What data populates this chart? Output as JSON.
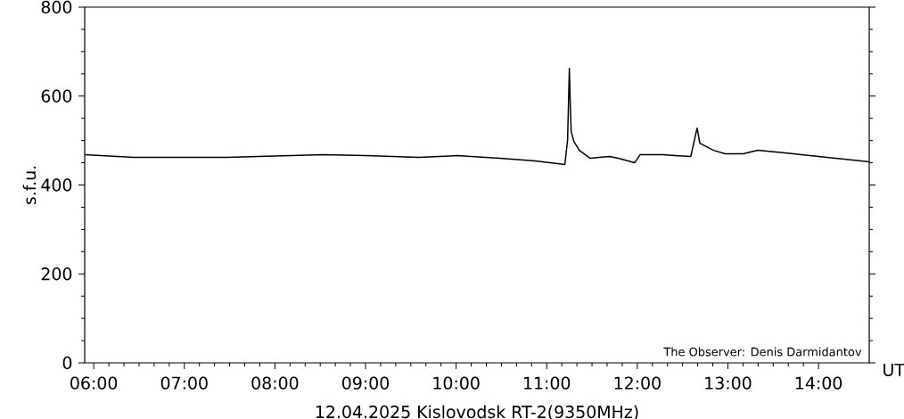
{
  "chart_data": {
    "type": "line",
    "xlabel": "12.04.2025 Kislovodsk RT-2(9350MHz)",
    "ylabel": "s.f.u.",
    "annotations": [
      "UT",
      "The Observer: Denis Darmidantov"
    ],
    "x": [
      5.9,
      6.44,
      7.43,
      8.53,
      9.0,
      9.59,
      10.01,
      10.48,
      10.87,
      11.2,
      11.23,
      11.25,
      11.26,
      11.27,
      11.3,
      11.36,
      11.48,
      11.69,
      11.79,
      11.97,
      12.03,
      12.28,
      12.59,
      12.66,
      12.69,
      12.84,
      12.97,
      13.17,
      13.33,
      13.63,
      14.0,
      14.56
    ],
    "series": [
      {
        "color": "#000000",
        "values": [
          468,
          462,
          462,
          468,
          466,
          462,
          466,
          460,
          454,
          446,
          500,
          662,
          580,
          520,
          498,
          478,
          460,
          464,
          460,
          450,
          468,
          468,
          464,
          528,
          494,
          478,
          470,
          470,
          478,
          472,
          464,
          452
        ]
      }
    ],
    "xlim": [
      5.9,
      14.56
    ],
    "ylim": [
      0,
      800
    ],
    "xticks": [
      {
        "value": 6,
        "label": "06:00"
      },
      {
        "value": 7,
        "label": "07:00"
      },
      {
        "value": 8,
        "label": "08:00"
      },
      {
        "value": 9,
        "label": "09:00"
      },
      {
        "value": 10,
        "label": "10:00"
      },
      {
        "value": 11,
        "label": "11:00"
      },
      {
        "value": 12,
        "label": "12:00"
      },
      {
        "value": 13,
        "label": "13:00"
      },
      {
        "value": 14,
        "label": "14:00"
      }
    ],
    "yticks": [
      0,
      200,
      400,
      600,
      800
    ]
  }
}
